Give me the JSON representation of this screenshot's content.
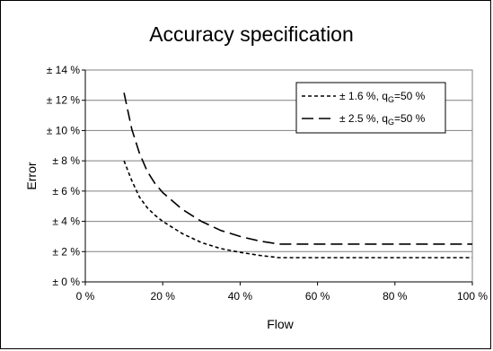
{
  "chart_data": {
    "type": "line",
    "title": "Accuracy specification",
    "xlabel": "Flow",
    "ylabel": "Error",
    "xlim": [
      0,
      100
    ],
    "ylim": [
      0,
      14
    ],
    "xticks": [
      0,
      20,
      40,
      60,
      80,
      100
    ],
    "xtick_labels": [
      "0 %",
      "20 %",
      "40 %",
      "60 %",
      "80 %",
      "100 %"
    ],
    "yticks": [
      0,
      2,
      4,
      6,
      8,
      10,
      12,
      14
    ],
    "ytick_labels": [
      "± 0 %",
      "± 2 %",
      "± 4 %",
      "± 6 %",
      "± 8 %",
      "± 10 %",
      "± 12 %",
      "± 14 %"
    ],
    "grid": "horizontal",
    "legend_position": "top-right",
    "series": [
      {
        "name": "± 1.6 %, qG=50 %",
        "name_parts": [
          "± 1.6 %, q",
          "G",
          "=50 %"
        ],
        "line_style": "short-dash",
        "x": [
          10,
          12,
          14,
          16,
          18,
          20,
          25,
          30,
          35,
          40,
          45,
          50,
          60,
          70,
          80,
          90,
          100
        ],
        "y": [
          8.0,
          6.7,
          5.6,
          4.9,
          4.4,
          4.0,
          3.2,
          2.6,
          2.2,
          1.95,
          1.75,
          1.6,
          1.6,
          1.6,
          1.6,
          1.6,
          1.6
        ]
      },
      {
        "name": "± 2.5 %, qG=50 %",
        "name_parts": [
          "± 2.5 %, q",
          "G",
          "=50 %"
        ],
        "line_style": "long-dash",
        "x": [
          10,
          12,
          14,
          16,
          18,
          20,
          25,
          30,
          35,
          40,
          45,
          50,
          60,
          70,
          80,
          90,
          100
        ],
        "y": [
          12.5,
          10.1,
          8.5,
          7.3,
          6.5,
          5.9,
          4.8,
          4.0,
          3.4,
          3.0,
          2.7,
          2.5,
          2.5,
          2.5,
          2.5,
          2.5,
          2.5
        ]
      }
    ]
  }
}
